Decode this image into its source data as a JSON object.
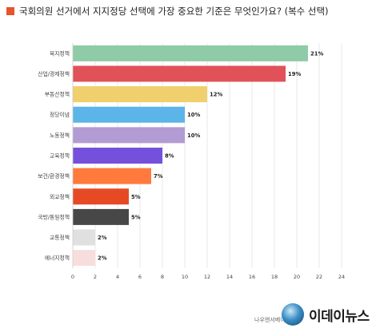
{
  "header": {
    "title": "국회의원 선거에서 지지정당 선택에 가장 중요한 기준은 무엇인가요? (복수 선택)",
    "marker_color": "#e8542c"
  },
  "chart_data": {
    "type": "bar",
    "orientation": "horizontal",
    "title": "국회의원 선거에서 지지정당 선택에 가장 중요한 기준은 무엇인가요? (복수 선택)",
    "xlabel": "",
    "ylabel": "",
    "xlim": [
      0,
      24
    ],
    "x_ticks": [
      0,
      2,
      4,
      6,
      8,
      10,
      12,
      14,
      16,
      18,
      20,
      22,
      24
    ],
    "grid": true,
    "legend": "none",
    "value_suffix": "%",
    "categories": [
      "복지정책",
      "산업/경제정책",
      "부동산정책",
      "정당이념",
      "노동정책",
      "교육정책",
      "보건/환경정책",
      "외교정책",
      "국방/통일정책",
      "교통정책",
      "에너지정책"
    ],
    "values": [
      21,
      19,
      12,
      10,
      10,
      8,
      7,
      5,
      5,
      2,
      2
    ],
    "colors": [
      "#8ecba6",
      "#e05257",
      "#f0cf6d",
      "#5bb5e8",
      "#b39bd3",
      "#7550dc",
      "#ff7a3c",
      "#e64a24",
      "#474747",
      "#e0e0e0",
      "#f7dedd"
    ]
  },
  "footer": {
    "source": "나우앤서베이",
    "brand": "이데이뉴스"
  }
}
